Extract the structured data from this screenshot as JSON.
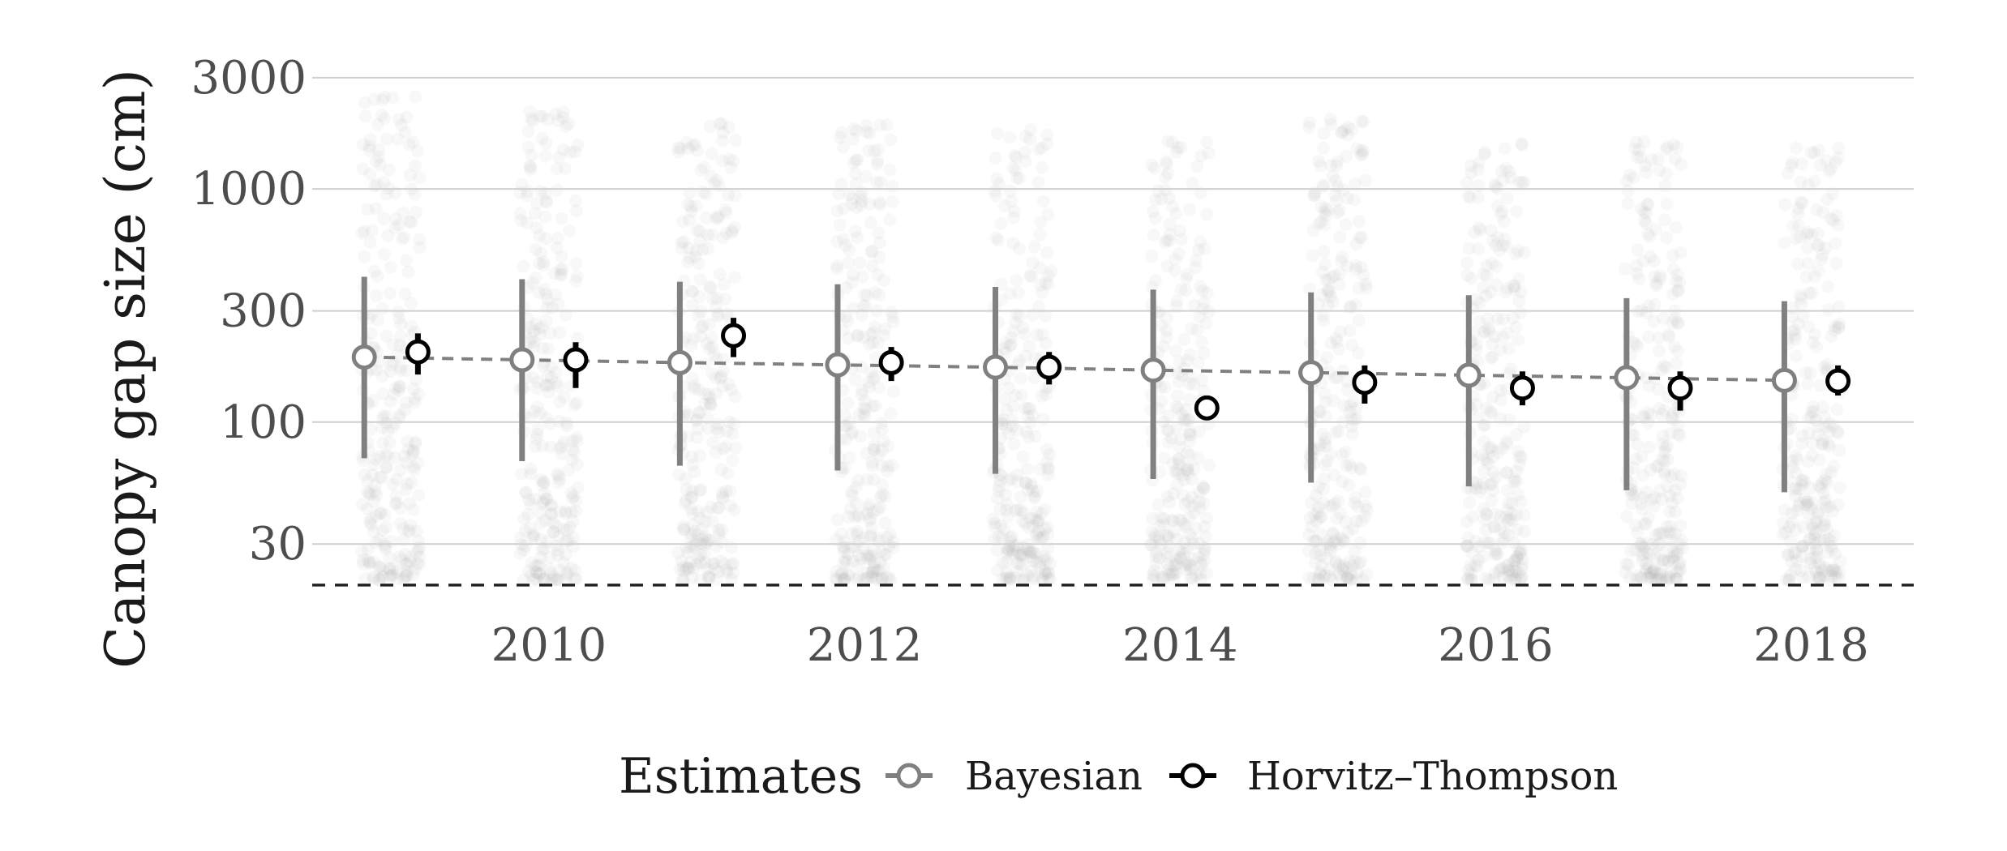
{
  "chart_data": {
    "type": "scatter",
    "title": "",
    "xlabel": "",
    "ylabel": "Canopy gap size (cm)",
    "y_scale": "log",
    "ylim": [
      18,
      4000
    ],
    "xlim": [
      2008.5,
      2018.65
    ],
    "x_ticks": [
      {
        "value": 2010,
        "label": "2010"
      },
      {
        "value": 2012,
        "label": "2012"
      },
      {
        "value": 2014,
        "label": "2014"
      },
      {
        "value": 2016,
        "label": "2016"
      },
      {
        "value": 2018,
        "label": "2018"
      }
    ],
    "y_ticks": [
      {
        "value": 30,
        "label": "30"
      },
      {
        "value": 100,
        "label": "100"
      },
      {
        "value": 300,
        "label": "300"
      },
      {
        "value": 1000,
        "label": "1000"
      },
      {
        "value": 3000,
        "label": "3000"
      }
    ],
    "grid": true,
    "threshold_line": {
      "y": 20,
      "style": "dashed"
    },
    "years": [
      2009,
      2010,
      2011,
      2012,
      2013,
      2014,
      2015,
      2016,
      2017,
      2018
    ],
    "raw_points_max": [
      2500,
      2200,
      2000,
      1900,
      1800,
      1600,
      2000,
      1700,
      1600,
      1500
    ],
    "series": [
      {
        "name": "Bayesian",
        "color": "#808080",
        "estimates": [
          190,
          185,
          180,
          176,
          172,
          167,
          163,
          159,
          155,
          151
        ],
        "lower": [
          70,
          68,
          65,
          62,
          60,
          57,
          55,
          53,
          51,
          50
        ],
        "upper": [
          420,
          410,
          400,
          390,
          380,
          370,
          360,
          350,
          340,
          330
        ],
        "trend_line": "dashed"
      },
      {
        "name": "Horvitz–Thompson",
        "color": "#000000",
        "estimates": [
          200,
          185,
          235,
          180,
          172,
          115,
          148,
          140,
          140,
          150
        ],
        "lower": [
          160,
          140,
          190,
          150,
          145,
          102,
          120,
          118,
          112,
          130
        ],
        "upper": [
          240,
          220,
          280,
          210,
          200,
          130,
          175,
          165,
          165,
          175
        ]
      }
    ]
  },
  "legend": {
    "title": "Estimates",
    "position": "bottom",
    "items": [
      "Bayesian",
      "Horvitz–Thompson"
    ]
  }
}
